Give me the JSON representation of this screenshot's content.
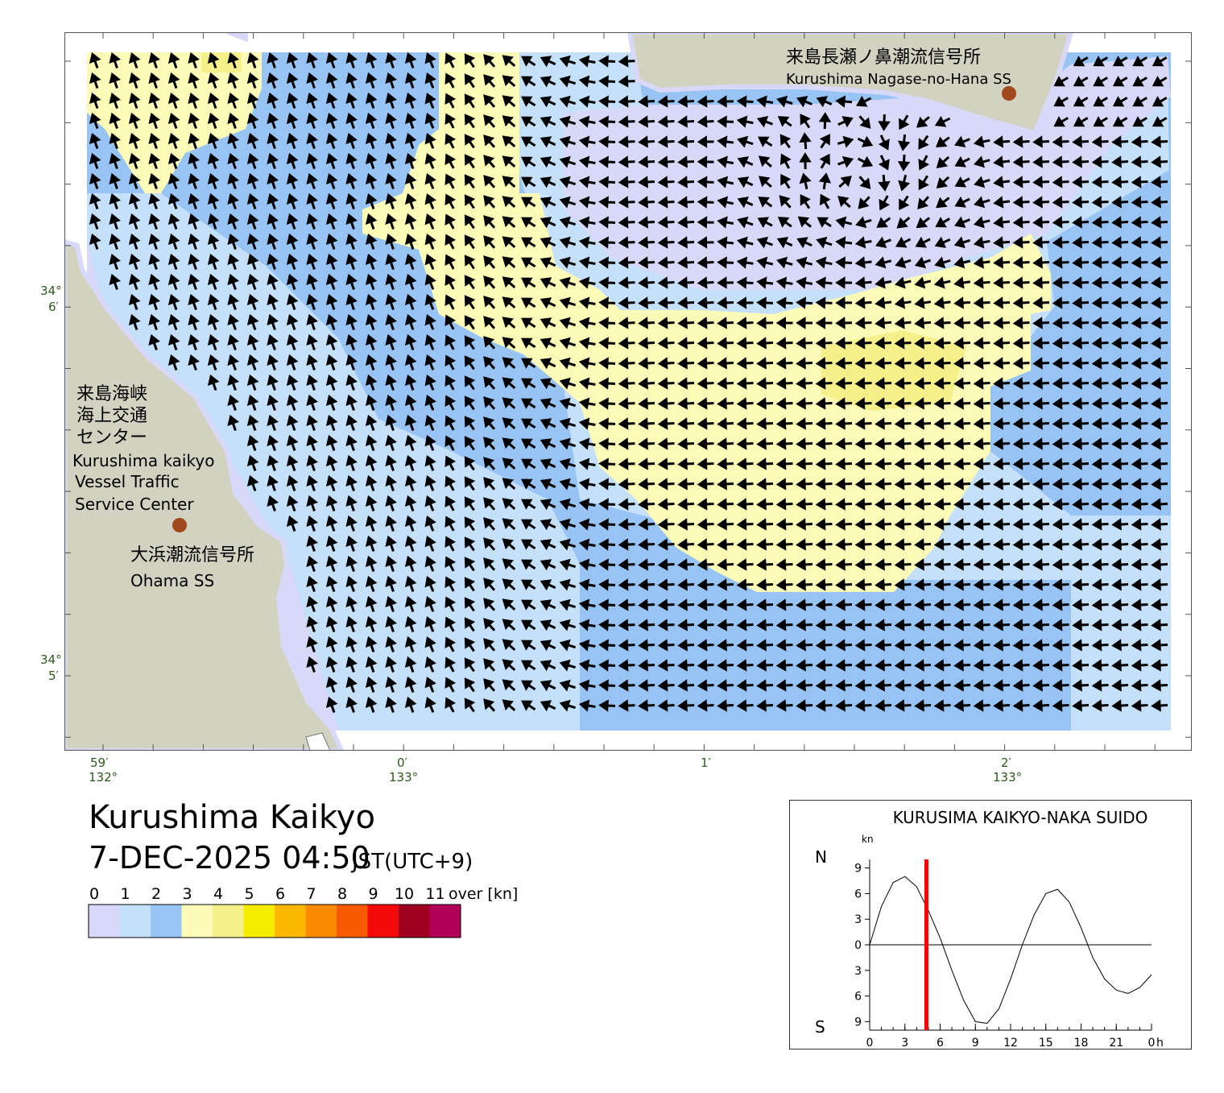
{
  "map": {
    "lat_labels": [
      {
        "deg": "34°",
        "min": "6′"
      },
      {
        "deg": "34°",
        "min": "5′"
      }
    ],
    "lon_labels": [
      {
        "min": "59′",
        "deg": "132°"
      },
      {
        "min": "0′",
        "deg": "133°"
      },
      {
        "min": "1′"
      },
      {
        "min": "2′",
        "deg": "133°"
      }
    ],
    "stations": [
      {
        "name_ja": "来島長瀬ノ鼻潮流信号所",
        "name_en": "Kurushima Nagase-no-Hana SS"
      },
      {
        "name_ja": "大浜潮流信号所",
        "name_en": "Ohama SS"
      }
    ],
    "center": {
      "name_ja": [
        "来島海峡",
        "海上交通",
        "センター"
      ],
      "name_en": [
        "Kurushima kaikyo",
        "Vessel Traffic",
        "Service Center"
      ]
    }
  },
  "header": {
    "title": "Kurushima Kaikyo",
    "datetime": "7-DEC-2025 04:50",
    "timezone": "JST(UTC+9)"
  },
  "legend": {
    "labels": [
      0,
      1,
      2,
      3,
      4,
      5,
      6,
      7,
      8,
      9,
      10,
      11
    ],
    "unit": "over [kn]",
    "colors": [
      "#d8d8f8",
      "#c4e0fb",
      "#98c4f5",
      "#fdfbb8",
      "#f5f08a",
      "#f5ec00",
      "#fbb800",
      "#fb8a00",
      "#f55a00",
      "#f50a0a",
      "#a00020",
      "#b00058"
    ]
  },
  "chart_data": {
    "type": "line",
    "title": "KURUSIMA KAIKYO-NAKA SUIDO",
    "y_unit": "kn",
    "x_unit": "h",
    "north_label": "N",
    "south_label": "S",
    "x": [
      0,
      1,
      2,
      3,
      4,
      5,
      6,
      7,
      8,
      9,
      10,
      11,
      12,
      13,
      14,
      15,
      16,
      17,
      18,
      19,
      20,
      21,
      22,
      23,
      24
    ],
    "series": [
      {
        "color": "#000000",
        "values": [
          0,
          4.5,
          7.3,
          8,
          6.8,
          4,
          0.8,
          -3,
          -6.5,
          -9,
          -9.2,
          -7.5,
          -4,
          0,
          3.5,
          6,
          6.5,
          5,
          2,
          -1.5,
          -4,
          -5.3,
          -5.7,
          -5,
          -3.5
        ]
      }
    ],
    "current_time_h": 4.83,
    "current_color": "#ff0000",
    "xlim": [
      0,
      24
    ],
    "xticks": [
      0,
      3,
      6,
      9,
      12,
      15,
      18,
      21,
      {
        "value": 24,
        "label": "0"
      }
    ],
    "ylim": [
      -10,
      10
    ],
    "yticks": [
      9,
      6,
      3,
      0,
      {
        "value": -3,
        "label": "3"
      },
      {
        "value": -6,
        "label": "6"
      },
      {
        "value": -9,
        "label": "9"
      }
    ]
  }
}
